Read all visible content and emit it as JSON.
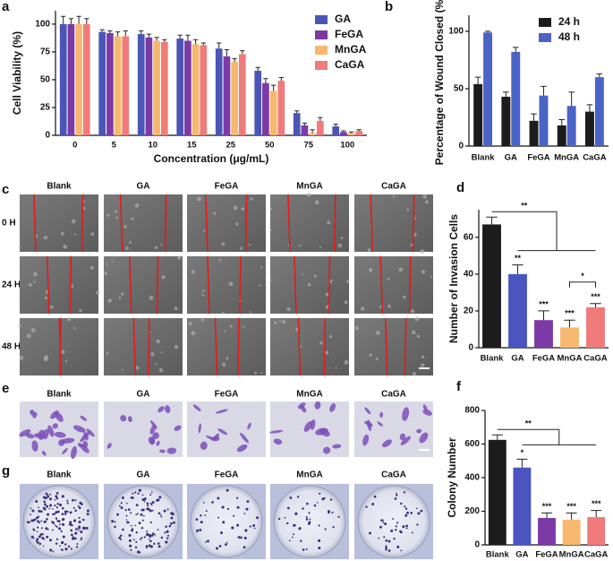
{
  "chart_data": [
    {
      "type": "bar",
      "panel": "a",
      "ylabel": "Cell Viability (%)",
      "xlabel": "Concentration (μg/mL)",
      "categories": [
        "0",
        "5",
        "10",
        "15",
        "25",
        "50",
        "75",
        "100"
      ],
      "series": [
        {
          "name": "GA",
          "color": "#4a55b5",
          "values": [
            100,
            93,
            91,
            87,
            78,
            58,
            20,
            8
          ],
          "errors": [
            7,
            2,
            3,
            3,
            5,
            3,
            2,
            2
          ]
        },
        {
          "name": "FeGA",
          "color": "#7b3aa6",
          "values": [
            100,
            92,
            88,
            85,
            71,
            47,
            9,
            3
          ],
          "errors": [
            5,
            2,
            3,
            5,
            6,
            4,
            2,
            1
          ]
        },
        {
          "name": "MnGA",
          "color": "#f6b86e",
          "values": [
            100,
            89,
            85,
            82,
            66,
            40,
            2,
            2
          ],
          "errors": [
            7,
            4,
            3,
            4,
            3,
            5,
            3,
            1
          ]
        },
        {
          "name": "CaGA",
          "color": "#f07b7b",
          "values": [
            100,
            89,
            84,
            81,
            73,
            49,
            13,
            4
          ],
          "errors": [
            5,
            5,
            2,
            2,
            3,
            3,
            3,
            1
          ]
        }
      ],
      "ylim": [
        0,
        112
      ],
      "yticks": [
        0,
        25,
        50,
        75,
        100
      ],
      "legend": "upper right"
    },
    {
      "type": "bar",
      "panel": "b",
      "ylabel": "Percentage of Wound Closed (%)",
      "categories": [
        "Blank",
        "GA",
        "FeGA",
        "MnGA",
        "CaGA"
      ],
      "series": [
        {
          "name": "24 h",
          "color": "#1c1c1c",
          "values": [
            54,
            43,
            22,
            18,
            30
          ],
          "errors": [
            6,
            4,
            6,
            5,
            6
          ]
        },
        {
          "name": "48 h",
          "color": "#4a63c6",
          "values": [
            99,
            82,
            44,
            35,
            60
          ],
          "errors": [
            1,
            4,
            8,
            12,
            3
          ]
        }
      ],
      "ylim": [
        0,
        114
      ],
      "yticks": [
        0,
        50,
        100
      ],
      "legend": "upper right"
    },
    {
      "type": "bar",
      "panel": "d",
      "ylabel": "Number of Invasion Cells",
      "categories": [
        "Blank",
        "GA",
        "FeGA",
        "MnGA",
        "CaGA"
      ],
      "values": [
        67,
        40,
        15,
        11,
        22
      ],
      "errors": [
        4,
        5,
        5,
        4,
        2
      ],
      "colors": [
        "#1c1c1c",
        "#4a55c0",
        "#7b3aa6",
        "#f6b86e",
        "#f07b7b"
      ],
      "significance": [
        null,
        "**",
        "***",
        "***",
        "***"
      ],
      "brackets": [
        {
          "label": "**",
          "from": "Blank",
          "to": [
            "GA",
            "FeGA",
            "MnGA",
            "CaGA"
          ]
        },
        {
          "label": "*",
          "from": "CaGA",
          "to": [
            "MnGA"
          ]
        }
      ],
      "ylim": [
        0,
        75
      ],
      "yticks": [
        0,
        20,
        40,
        60
      ]
    },
    {
      "type": "bar",
      "panel": "f",
      "ylabel": "Colony Number",
      "categories": [
        "Blank",
        "GA",
        "FeGA",
        "MnGA",
        "CaGA"
      ],
      "values": [
        625,
        460,
        160,
        150,
        165
      ],
      "errors": [
        30,
        50,
        30,
        40,
        40
      ],
      "colors": [
        "#1c1c1c",
        "#4a55c0",
        "#7b3aa6",
        "#f6b86e",
        "#f07b7b"
      ],
      "significance": [
        null,
        "*",
        "***",
        "***",
        "***"
      ],
      "brackets": [
        {
          "label": "**",
          "from": "Blank",
          "to": [
            "GA",
            "FeGA",
            "MnGA",
            "CaGA"
          ]
        }
      ],
      "ylim": [
        0,
        800
      ],
      "yticks": [
        0,
        200,
        400,
        600,
        800
      ]
    }
  ],
  "image_panels": [
    {
      "panel": "c",
      "columns": [
        "Blank",
        "GA",
        "FeGA",
        "MnGA",
        "CaGA"
      ],
      "rows": [
        "0 H",
        "24 H",
        "48 H"
      ]
    },
    {
      "panel": "e",
      "columns": [
        "Blank",
        "GA",
        "FeGA",
        "MnGA",
        "CaGA"
      ]
    },
    {
      "panel": "g",
      "columns": [
        "Blank",
        "GA",
        "FeGA",
        "MnGA",
        "CaGA"
      ]
    }
  ]
}
